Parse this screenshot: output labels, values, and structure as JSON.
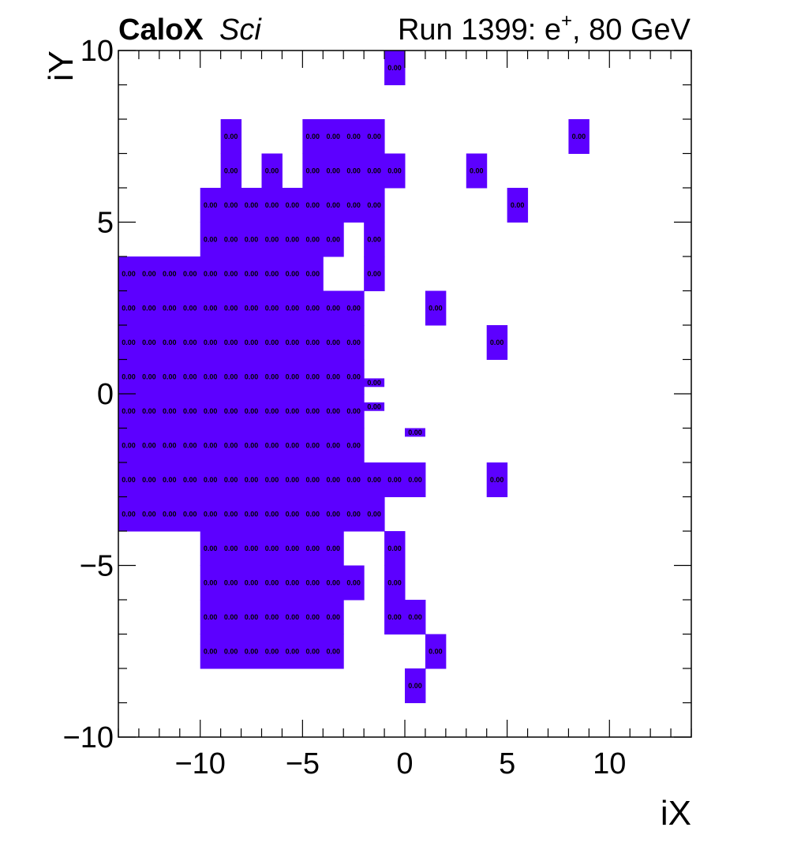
{
  "header": {
    "experiment": "CaloX",
    "subtitle": "Sci",
    "run_text": "Run 1399: e",
    "run_sup": "+",
    "run_tail": ", 80 GeV"
  },
  "colors": {
    "fill": "#5c00ff",
    "frame": "#000000"
  },
  "chart_data": {
    "type": "heatmap",
    "xlabel": "iX",
    "ylabel": "iY",
    "xlim": [
      -14,
      14
    ],
    "ylim": [
      -10,
      10
    ],
    "x_ticks": [
      -10,
      -5,
      0,
      5,
      10
    ],
    "x_tick_labels": [
      "−10",
      "−5",
      "0",
      "5",
      "10"
    ],
    "y_ticks": [
      -10,
      -5,
      0,
      5,
      10
    ],
    "y_tick_labels": [
      "−10",
      "−5",
      "0",
      "5",
      "10"
    ],
    "cell_label": "0.00",
    "full_rows": [
      {
        "y": 9,
        "x": [
          -1
        ]
      },
      {
        "y": 7,
        "x": [
          -9,
          -5,
          -4,
          -3,
          -2,
          8
        ]
      },
      {
        "y": 6,
        "x": [
          -9,
          -7,
          -5,
          -4,
          -3,
          -2,
          -1,
          3
        ]
      },
      {
        "y": 5,
        "x": [
          -10,
          -9,
          -8,
          -7,
          -6,
          -5,
          -4,
          -3,
          -2,
          5
        ]
      },
      {
        "y": 4,
        "x": [
          -10,
          -9,
          -8,
          -7,
          -6,
          -5,
          -4,
          -2
        ]
      },
      {
        "y": 3,
        "x": [
          -14,
          -13,
          -12,
          -11,
          -10,
          -9,
          -8,
          -7,
          -6,
          -5,
          -2
        ]
      },
      {
        "y": 2,
        "x": [
          -14,
          -13,
          -12,
          -11,
          -10,
          -9,
          -8,
          -7,
          -6,
          -5,
          -4,
          -3,
          1
        ]
      },
      {
        "y": 1,
        "x": [
          -14,
          -13,
          -12,
          -11,
          -10,
          -9,
          -8,
          -7,
          -6,
          -5,
          -4,
          -3,
          4
        ]
      },
      {
        "y": 0,
        "x": [
          -14,
          -13,
          -12,
          -11,
          -10,
          -9,
          -8,
          -7,
          -6,
          -5,
          -4,
          -3
        ]
      },
      {
        "y": -1,
        "x": [
          -14,
          -13,
          -12,
          -11,
          -10,
          -9,
          -8,
          -7,
          -6,
          -5,
          -4,
          -3
        ]
      },
      {
        "y": -2,
        "x": [
          -14,
          -13,
          -12,
          -11,
          -10,
          -9,
          -8,
          -7,
          -6,
          -5,
          -4,
          -3
        ]
      },
      {
        "y": -3,
        "x": [
          -14,
          -13,
          -12,
          -11,
          -10,
          -9,
          -8,
          -7,
          -6,
          -5,
          -4,
          -3,
          -2,
          -1,
          0,
          4
        ]
      },
      {
        "y": -4,
        "x": [
          -14,
          -13,
          -12,
          -11,
          -10,
          -9,
          -8,
          -7,
          -6,
          -5,
          -4,
          -3,
          -2
        ]
      },
      {
        "y": -5,
        "x": [
          -10,
          -9,
          -8,
          -7,
          -6,
          -5,
          -4,
          -1
        ]
      },
      {
        "y": -6,
        "x": [
          -10,
          -9,
          -8,
          -7,
          -6,
          -5,
          -4,
          -3,
          -1
        ]
      },
      {
        "y": -7,
        "x": [
          -10,
          -9,
          -8,
          -7,
          -6,
          -5,
          -4,
          -1,
          0
        ]
      },
      {
        "y": -8,
        "x": [
          -10,
          -9,
          -8,
          -7,
          -6,
          -5,
          -4,
          1
        ]
      },
      {
        "y": -9,
        "x": [
          0
        ]
      }
    ],
    "partial_cells": [
      {
        "x": -2,
        "y_from": 0.2,
        "y_to": 0.45
      },
      {
        "x": -2,
        "y_from": -0.5,
        "y_to": -0.25
      },
      {
        "x": 0,
        "y_from": -1.25,
        "y_to": -1.0
      }
    ]
  }
}
